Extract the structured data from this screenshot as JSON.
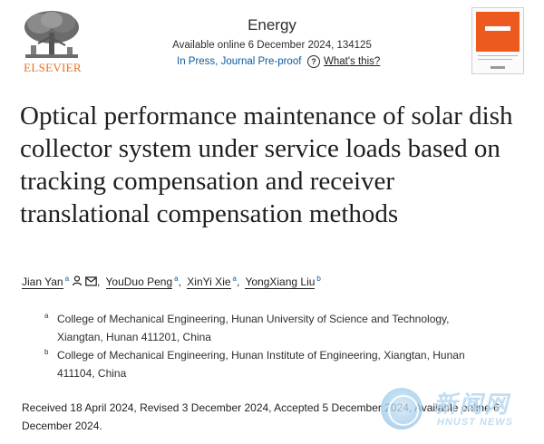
{
  "publisher": {
    "logo_text": "ELSEVIER",
    "logo_icon": "elsevier-tree-logo"
  },
  "journal": {
    "name": "Energy",
    "availability": "Available online 6 December 2024, 134125",
    "status": "In Press, Journal Pre-proof",
    "help_icon": "question-circle-icon",
    "help_label": "What's this?"
  },
  "cover": {
    "icon": "journal-cover-thumbnail",
    "accent_color": "#ec5a20"
  },
  "article": {
    "title": "Optical performance maintenance of solar dish collector system under service loads based on tracking compensation and receiver translational compensation methods",
    "authors": [
      {
        "name": "Jian Yan",
        "sup": "a"
      },
      {
        "name": "YouDuo Peng",
        "sup": "a"
      },
      {
        "name": "XinYi Xie",
        "sup": "a"
      },
      {
        "name": "YongXiang Liu",
        "sup": "b"
      }
    ],
    "author_icons": [
      "person-icon",
      "envelope-icon"
    ],
    "affiliations": [
      {
        "label": "a",
        "text": "College of Mechanical Engineering, Hunan University of Science and Technology, Xiangtan, Hunan 411201, China"
      },
      {
        "label": "b",
        "text": "College of Mechanical Engineering, Hunan Institute of Engineering, Xiangtan, Hunan 411104, China"
      }
    ],
    "history": "Received 18 April 2024, Revised 3 December 2024, Accepted 5 December 2024, Available online 6 December 2024."
  },
  "watermark": {
    "icon": "hnust-news-logo",
    "chinese_text": "新闻网",
    "english_text": "HNUST NEWS"
  }
}
